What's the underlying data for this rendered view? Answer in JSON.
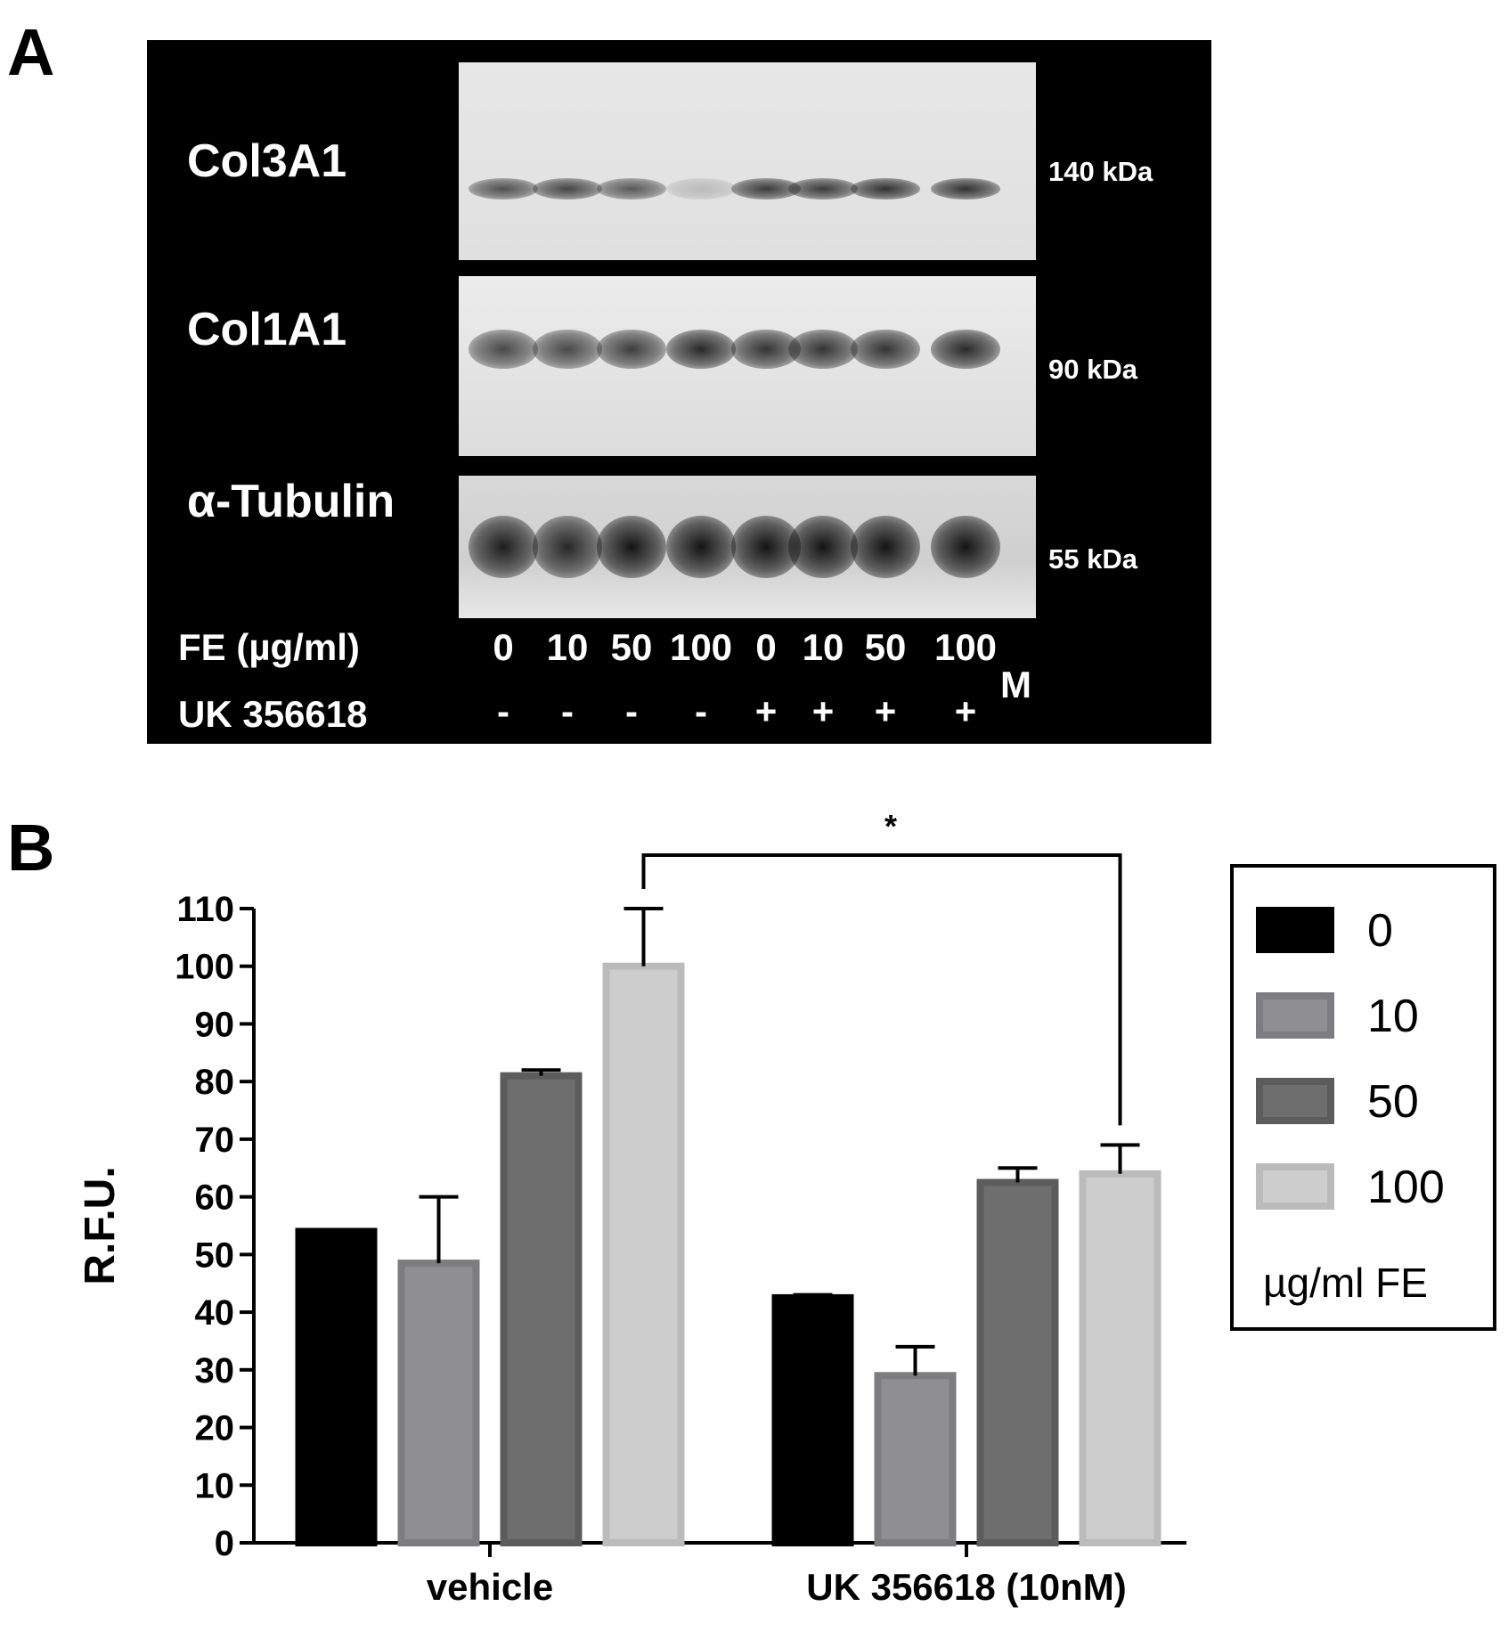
{
  "panel_a": {
    "letter": "A",
    "proteins": [
      {
        "label": "Col3A1",
        "size": "140 kDa"
      },
      {
        "label": "Col1A1",
        "size": "90 kDa"
      },
      {
        "label": "α-Tubulin",
        "size": "55 kDa"
      }
    ],
    "row_labels": {
      "fe": "FE (µg/ml)",
      "uk": "UK 356618"
    },
    "lanes_fe": [
      "0",
      "10",
      "50",
      "100",
      "0",
      "10",
      "50",
      "100"
    ],
    "lanes_uk": [
      "-",
      "-",
      "-",
      "-",
      "+",
      "+",
      "+",
      "+"
    ],
    "marker": "M"
  },
  "panel_b": {
    "letter": "B",
    "legend_title": "µg/ml FE",
    "significance": "*"
  },
  "chart_data": {
    "type": "bar",
    "title": "",
    "xlabel": "",
    "ylabel": "R.F.U.",
    "ylim": [
      0,
      110
    ],
    "yticks": [
      0,
      10,
      20,
      30,
      40,
      50,
      60,
      70,
      80,
      90,
      100,
      110
    ],
    "categories": [
      "vehicle",
      "UK 356618 (10nM)"
    ],
    "series": [
      {
        "name": "0",
        "values": [
          54,
          42.5
        ],
        "errors": [
          0.3,
          0.5
        ],
        "color": "#000000"
      },
      {
        "name": "10",
        "values": [
          48.5,
          29
        ],
        "errors": [
          11.5,
          5
        ],
        "color": "#8f8f92"
      },
      {
        "name": "50",
        "values": [
          81,
          62.5
        ],
        "errors": [
          1,
          2.5
        ],
        "color": "#6e6e6e"
      },
      {
        "name": "100",
        "values": [
          100,
          64
        ],
        "errors": [
          10,
          5
        ],
        "color": "#cdcdcd"
      }
    ],
    "legend_position": "right",
    "grid": false,
    "annotations": [
      {
        "text": "*",
        "between": [
          "vehicle / 100",
          "UK 356618 (10nM) / 100"
        ]
      }
    ]
  }
}
